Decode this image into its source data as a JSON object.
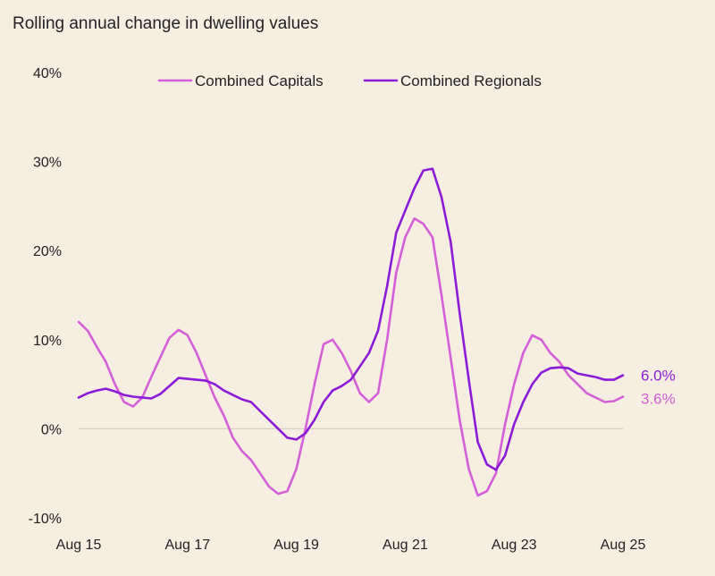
{
  "chart_data": {
    "type": "line",
    "title": "Rolling annual change in dwelling values",
    "xlabel": "",
    "ylabel": "",
    "x_start": 2015.583,
    "x_end": 2025.583,
    "xlim": [
      2015.583,
      2025.583
    ],
    "ylim": [
      -10,
      40
    ],
    "y_ticks": [
      {
        "value": -10,
        "label": "-10%"
      },
      {
        "value": 0,
        "label": "0%"
      },
      {
        "value": 10,
        "label": "10%"
      },
      {
        "value": 20,
        "label": "20%"
      },
      {
        "value": 30,
        "label": "30%"
      },
      {
        "value": 40,
        "label": "40%"
      }
    ],
    "x_ticks": [
      {
        "value": 2015.583,
        "label": "Aug 15"
      },
      {
        "value": 2017.583,
        "label": "Aug 17"
      },
      {
        "value": 2019.583,
        "label": "Aug 19"
      },
      {
        "value": 2021.583,
        "label": "Aug 21"
      },
      {
        "value": 2023.583,
        "label": "Aug 23"
      },
      {
        "value": 2025.583,
        "label": "Aug 25"
      }
    ],
    "grid": false,
    "zero_line": true,
    "legend_position": "top",
    "series": [
      {
        "name": "Combined Capitals",
        "color": "#D45FD6",
        "end_label": "3.6%",
        "points": [
          [
            2015.583,
            12.0
          ],
          [
            2015.75,
            11.0
          ],
          [
            2015.917,
            9.2
          ],
          [
            2016.083,
            7.5
          ],
          [
            2016.25,
            5.0
          ],
          [
            2016.417,
            3.0
          ],
          [
            2016.583,
            2.5
          ],
          [
            2016.75,
            3.5
          ],
          [
            2016.917,
            5.8
          ],
          [
            2017.083,
            8.0
          ],
          [
            2017.25,
            10.2
          ],
          [
            2017.417,
            11.1
          ],
          [
            2017.583,
            10.5
          ],
          [
            2017.75,
            8.5
          ],
          [
            2017.917,
            6.0
          ],
          [
            2018.083,
            3.5
          ],
          [
            2018.25,
            1.5
          ],
          [
            2018.417,
            -1.0
          ],
          [
            2018.583,
            -2.5
          ],
          [
            2018.75,
            -3.5
          ],
          [
            2018.917,
            -5.0
          ],
          [
            2019.083,
            -6.5
          ],
          [
            2019.25,
            -7.3
          ],
          [
            2019.417,
            -7.0
          ],
          [
            2019.583,
            -4.5
          ],
          [
            2019.75,
            0.0
          ],
          [
            2019.917,
            5.0
          ],
          [
            2020.083,
            9.5
          ],
          [
            2020.25,
            10.0
          ],
          [
            2020.417,
            8.5
          ],
          [
            2020.583,
            6.5
          ],
          [
            2020.75,
            4.0
          ],
          [
            2020.917,
            3.0
          ],
          [
            2021.083,
            4.0
          ],
          [
            2021.25,
            10.0
          ],
          [
            2021.417,
            17.5
          ],
          [
            2021.583,
            21.5
          ],
          [
            2021.75,
            23.6
          ],
          [
            2021.917,
            23.0
          ],
          [
            2022.083,
            21.5
          ],
          [
            2022.25,
            15.0
          ],
          [
            2022.417,
            8.0
          ],
          [
            2022.583,
            1.0
          ],
          [
            2022.75,
            -4.5
          ],
          [
            2022.917,
            -7.5
          ],
          [
            2023.083,
            -7.0
          ],
          [
            2023.25,
            -5.0
          ],
          [
            2023.417,
            0.5
          ],
          [
            2023.583,
            5.0
          ],
          [
            2023.75,
            8.5
          ],
          [
            2023.917,
            10.5
          ],
          [
            2024.083,
            10.0
          ],
          [
            2024.25,
            8.5
          ],
          [
            2024.417,
            7.5
          ],
          [
            2024.583,
            6.0
          ],
          [
            2024.75,
            5.0
          ],
          [
            2024.917,
            4.0
          ],
          [
            2025.083,
            3.5
          ],
          [
            2025.25,
            3.0
          ],
          [
            2025.417,
            3.1
          ],
          [
            2025.583,
            3.6
          ]
        ]
      },
      {
        "name": "Combined Regionals",
        "color": "#8B1BD6",
        "end_label": "6.0%",
        "points": [
          [
            2015.583,
            3.5
          ],
          [
            2015.75,
            4.0
          ],
          [
            2015.917,
            4.3
          ],
          [
            2016.083,
            4.5
          ],
          [
            2016.25,
            4.2
          ],
          [
            2016.417,
            3.8
          ],
          [
            2016.583,
            3.6
          ],
          [
            2016.75,
            3.5
          ],
          [
            2016.917,
            3.4
          ],
          [
            2017.083,
            3.9
          ],
          [
            2017.25,
            4.8
          ],
          [
            2017.417,
            5.7
          ],
          [
            2017.583,
            5.6
          ],
          [
            2017.75,
            5.5
          ],
          [
            2017.917,
            5.4
          ],
          [
            2018.083,
            5.0
          ],
          [
            2018.25,
            4.3
          ],
          [
            2018.417,
            3.8
          ],
          [
            2018.583,
            3.3
          ],
          [
            2018.75,
            3.0
          ],
          [
            2018.917,
            2.0
          ],
          [
            2019.083,
            1.0
          ],
          [
            2019.25,
            0.0
          ],
          [
            2019.417,
            -1.0
          ],
          [
            2019.583,
            -1.2
          ],
          [
            2019.75,
            -0.5
          ],
          [
            2019.917,
            1.0
          ],
          [
            2020.083,
            3.0
          ],
          [
            2020.25,
            4.3
          ],
          [
            2020.417,
            4.8
          ],
          [
            2020.583,
            5.5
          ],
          [
            2020.75,
            7.0
          ],
          [
            2020.917,
            8.5
          ],
          [
            2021.083,
            11.0
          ],
          [
            2021.25,
            16.0
          ],
          [
            2021.417,
            22.0
          ],
          [
            2021.583,
            24.5
          ],
          [
            2021.75,
            27.0
          ],
          [
            2021.917,
            29.0
          ],
          [
            2022.083,
            29.2
          ],
          [
            2022.25,
            26.0
          ],
          [
            2022.417,
            21.0
          ],
          [
            2022.583,
            13.0
          ],
          [
            2022.75,
            5.5
          ],
          [
            2022.917,
            -1.5
          ],
          [
            2023.083,
            -4.0
          ],
          [
            2023.25,
            -4.6
          ],
          [
            2023.417,
            -3.0
          ],
          [
            2023.583,
            0.5
          ],
          [
            2023.75,
            3.0
          ],
          [
            2023.917,
            5.0
          ],
          [
            2024.083,
            6.3
          ],
          [
            2024.25,
            6.8
          ],
          [
            2024.417,
            6.9
          ],
          [
            2024.583,
            6.8
          ],
          [
            2024.75,
            6.2
          ],
          [
            2024.917,
            6.0
          ],
          [
            2025.083,
            5.8
          ],
          [
            2025.25,
            5.5
          ],
          [
            2025.417,
            5.5
          ],
          [
            2025.583,
            6.0
          ]
        ]
      }
    ]
  }
}
